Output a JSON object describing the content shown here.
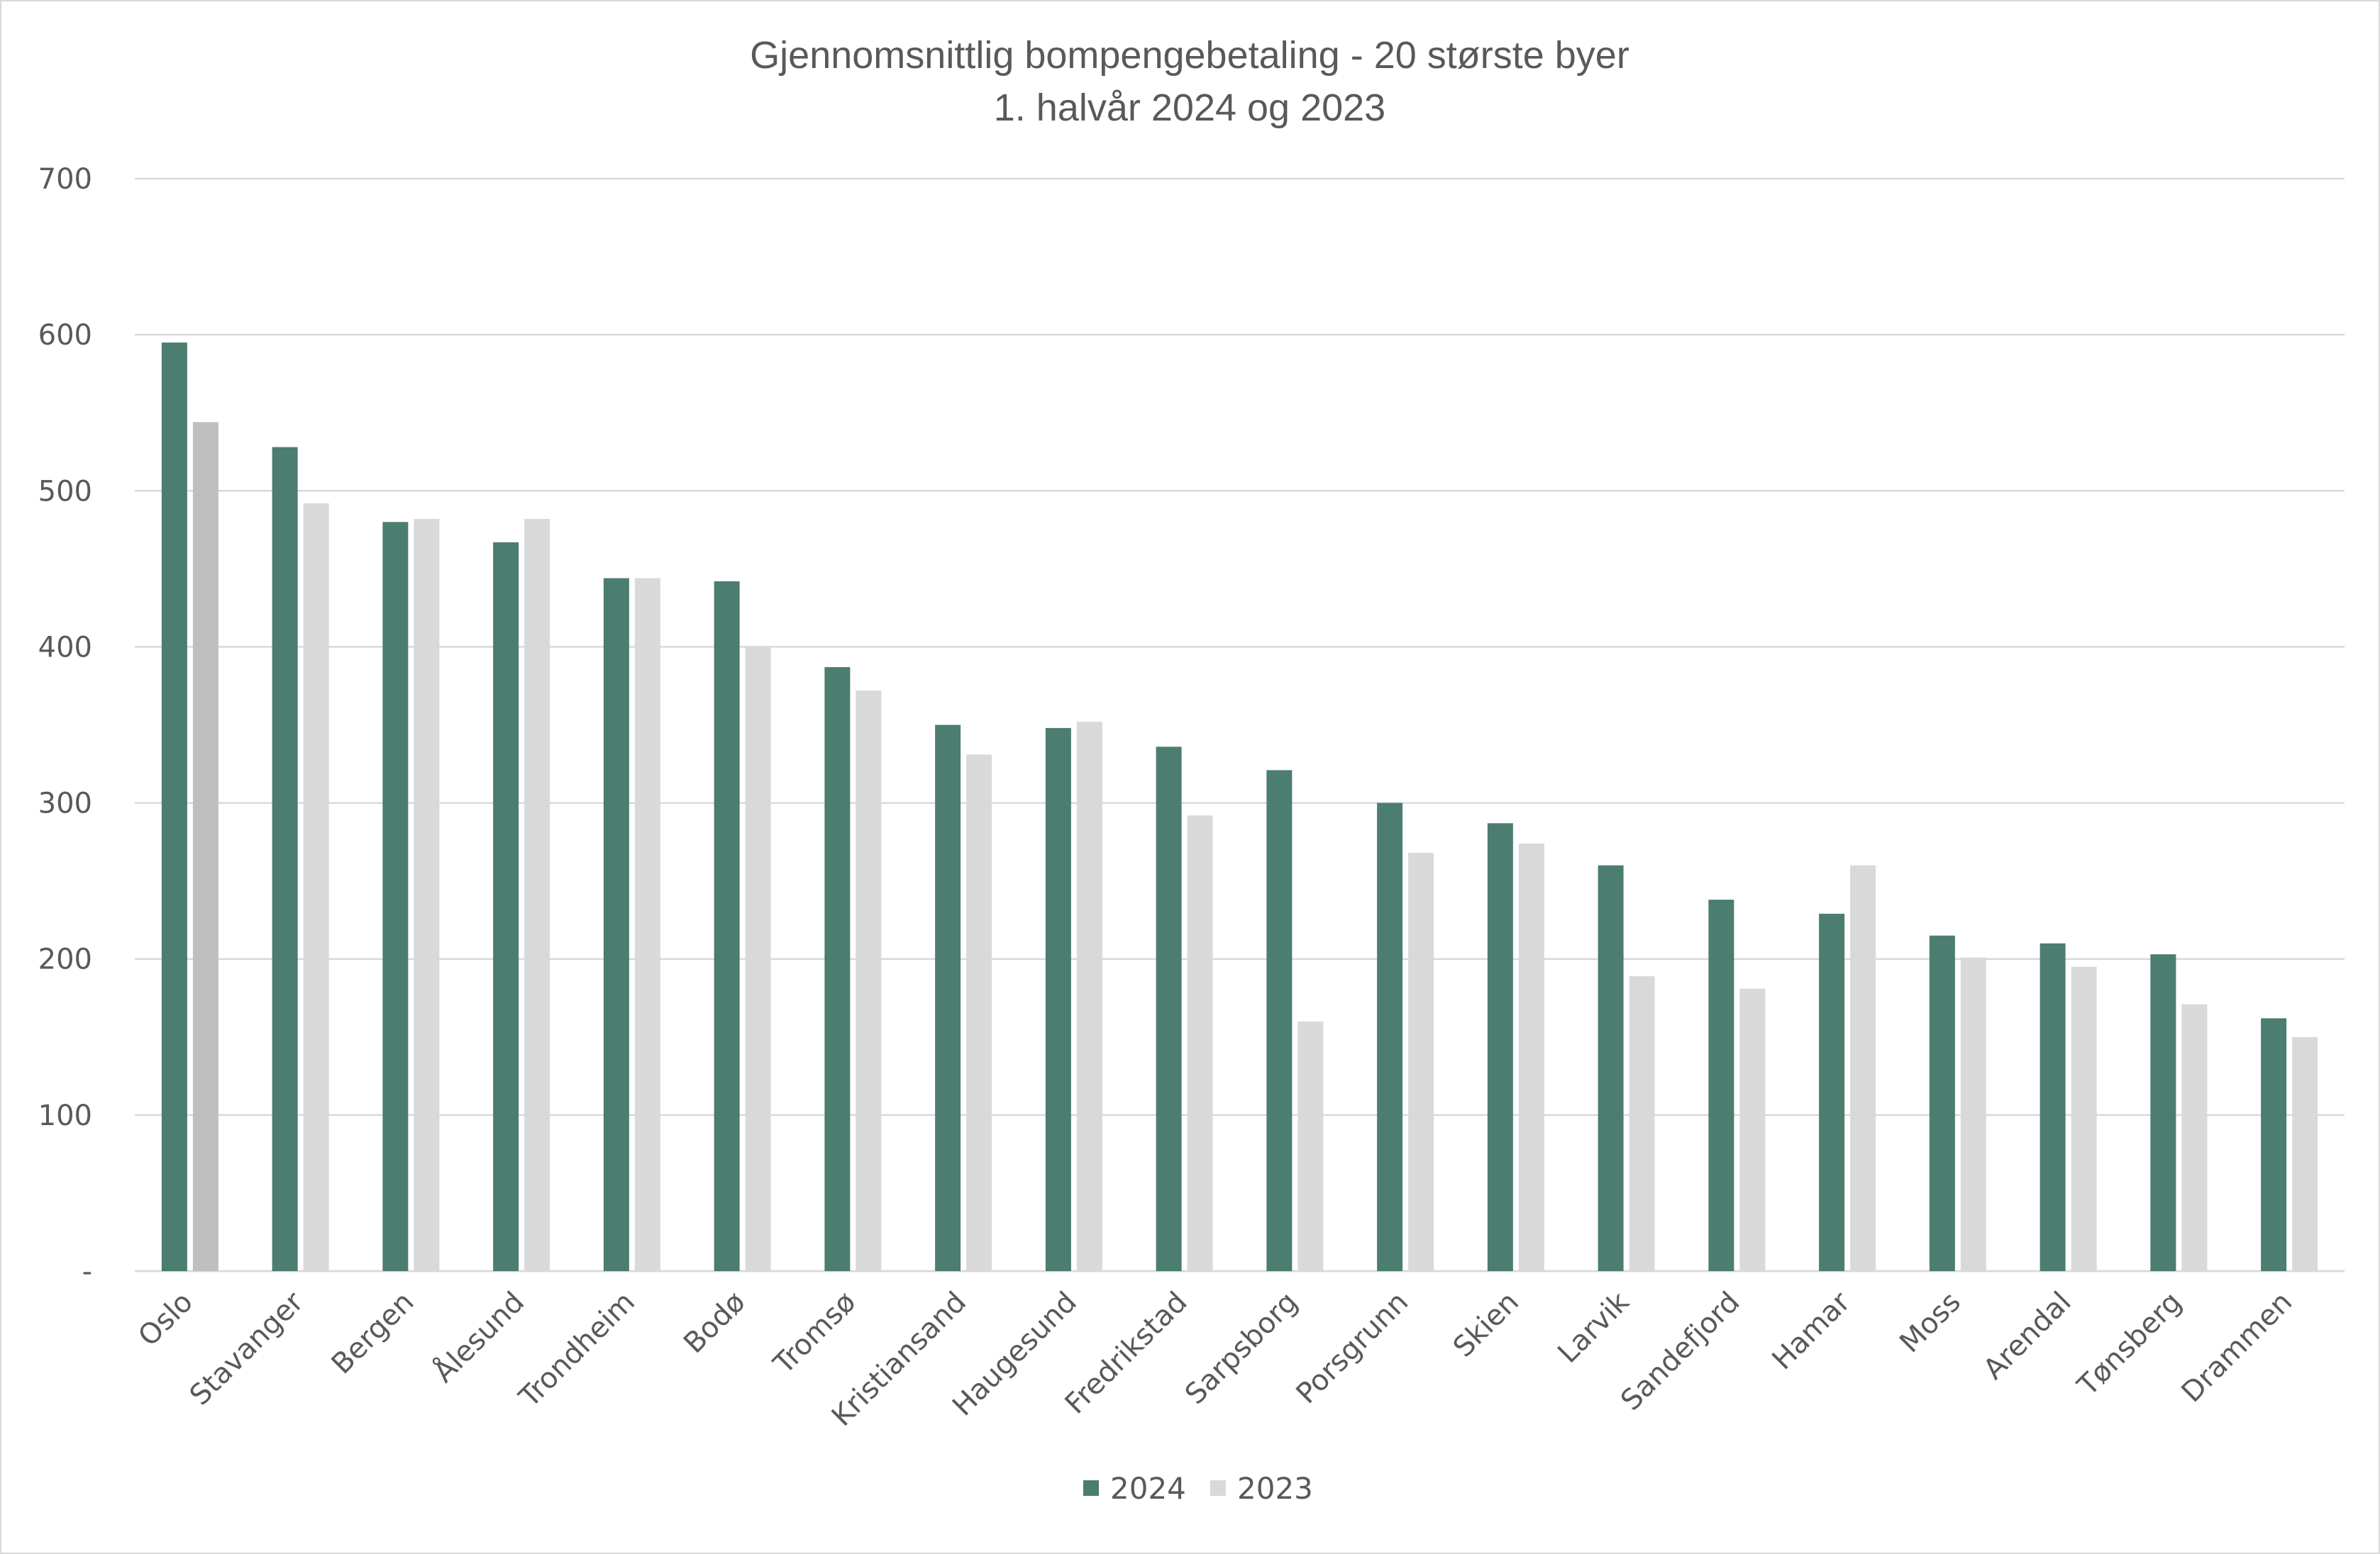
{
  "chart_data": {
    "type": "bar",
    "title": "Gjennomsnittlig bompengebetaling - 20 største byer",
    "subtitle": "1. halvår 2024 og 2023",
    "xlabel": "",
    "ylabel": "",
    "ylim": [
      0,
      700
    ],
    "yticks": [
      0,
      100,
      200,
      300,
      400,
      500,
      600,
      700
    ],
    "ytick_labels": [
      "-",
      "100",
      "200",
      "300",
      "400",
      "500",
      "600",
      "700"
    ],
    "grid": true,
    "legend_position": "bottom",
    "categories": [
      "Oslo",
      "Stavanger",
      "Bergen",
      "Ålesund",
      "Trondheim",
      "Bodø",
      "Tromsø",
      "Kristiansand",
      "Haugesund",
      "Fredrikstad",
      "Sarpsborg",
      "Porsgrunn",
      "Skien",
      "Larvik",
      "Sandefjord",
      "Hamar",
      "Moss",
      "Arendal",
      "Tønsberg",
      "Drammen"
    ],
    "series": [
      {
        "name": "2024",
        "color": "#4b7d70",
        "values": [
          595,
          528,
          480,
          467,
          444,
          442,
          387,
          350,
          348,
          336,
          321,
          300,
          287,
          260,
          238,
          229,
          215,
          210,
          203,
          162
        ]
      },
      {
        "name": "2023",
        "color": "#d9d9d9",
        "highlight_color": "#bfbfbf",
        "highlight_index": 0,
        "values": [
          544,
          492,
          482,
          482,
          444,
          400,
          372,
          331,
          352,
          292,
          160,
          268,
          274,
          189,
          181,
          260,
          201,
          195,
          171,
          150
        ]
      }
    ]
  }
}
